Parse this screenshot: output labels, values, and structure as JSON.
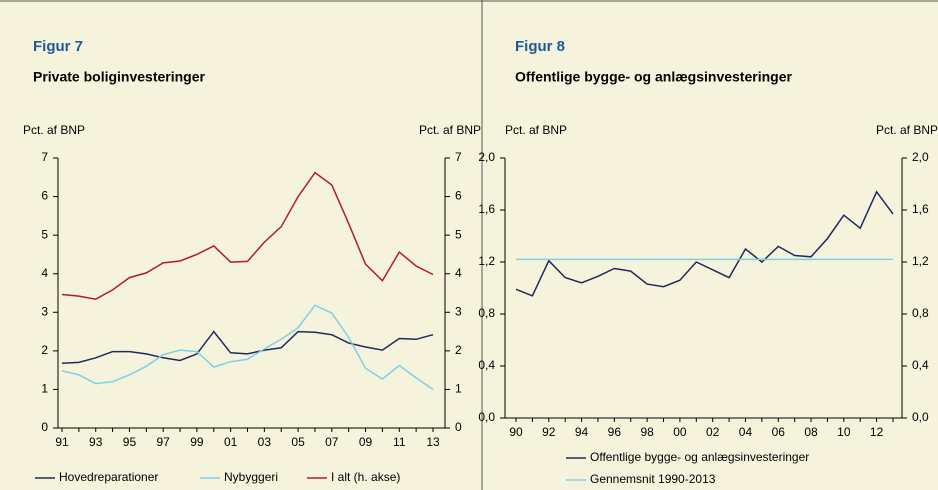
{
  "chart_data": [
    {
      "type": "line",
      "title": "Figur 7",
      "subtitle": "Private boliginvesteringer",
      "ylabel": "Pct. af BNP",
      "y2label": "Pct. af BNP",
      "categories": [
        "91",
        null,
        "93",
        null,
        "95",
        null,
        "97",
        null,
        "99",
        null,
        "01",
        null,
        "03",
        null,
        "05",
        null,
        "07",
        null,
        "09",
        null,
        "11",
        null,
        "13"
      ],
      "series": [
        {
          "name": "Hovedreparationer",
          "color": "#1f2a5c",
          "values": [
            1.68,
            1.7,
            1.82,
            1.98,
            1.98,
            1.92,
            1.82,
            1.75,
            1.92,
            2.5,
            1.95,
            1.92,
            2.02,
            2.08,
            2.5,
            2.48,
            2.42,
            2.2,
            2.1,
            2.02,
            2.32,
            2.3,
            2.42
          ]
        },
        {
          "name": "Nybyggeri",
          "color": "#7fcfe6",
          "values": [
            1.48,
            1.38,
            1.15,
            1.2,
            1.38,
            1.6,
            1.9,
            2.02,
            1.98,
            1.58,
            1.72,
            1.78,
            2.05,
            2.3,
            2.6,
            3.18,
            2.98,
            2.35,
            1.55,
            1.27,
            1.62,
            1.3,
            1.0
          ]
        },
        {
          "name": "I alt (h. akse)",
          "color": "#b01c2e",
          "axis": "y2",
          "values": [
            3.46,
            3.42,
            3.34,
            3.58,
            3.9,
            4.02,
            4.28,
            4.33,
            4.5,
            4.72,
            4.3,
            4.32,
            4.82,
            5.22,
            6.0,
            6.62,
            6.3,
            5.3,
            4.25,
            3.82,
            4.56,
            4.2,
            3.98
          ]
        }
      ],
      "ylim": [
        0,
        7
      ],
      "yticks": [
        0,
        1,
        2,
        3,
        4,
        5,
        6,
        7
      ],
      "y2lim": [
        0,
        7
      ],
      "y2ticks": [
        0,
        1,
        2,
        3,
        4,
        5,
        6,
        7
      ]
    },
    {
      "type": "line",
      "title": "Figur 8",
      "subtitle": "Offentlige bygge- og anlægsinvesteringer",
      "ylabel": "Pct. af BNP",
      "y2label": "Pct. af BNP",
      "categories": [
        "90",
        null,
        "92",
        null,
        "94",
        null,
        "96",
        null,
        "98",
        null,
        "00",
        null,
        "02",
        null,
        "04",
        null,
        "06",
        null,
        "08",
        null,
        "10",
        null,
        "12",
        null
      ],
      "series": [
        {
          "name": "Offentlige bygge- og anlægsinvesteringer",
          "color": "#1f2a5c",
          "values": [
            0.99,
            0.94,
            1.21,
            1.08,
            1.04,
            1.09,
            1.15,
            1.13,
            1.03,
            1.01,
            1.06,
            1.2,
            1.14,
            1.08,
            1.3,
            1.2,
            1.32,
            1.25,
            1.24,
            1.38,
            1.56,
            1.46,
            1.74,
            1.57
          ]
        },
        {
          "name": "Gennemsnit 1990-2013",
          "color": "#7fcfe6",
          "values": [
            1.22,
            1.22,
            1.22,
            1.22,
            1.22,
            1.22,
            1.22,
            1.22,
            1.22,
            1.22,
            1.22,
            1.22,
            1.22,
            1.22,
            1.22,
            1.22,
            1.22,
            1.22,
            1.22,
            1.22,
            1.22,
            1.22,
            1.22,
            1.22
          ]
        }
      ],
      "ylim": [
        0,
        2
      ],
      "yticks": [
        {
          "value": 0,
          "label": "0,0"
        },
        {
          "value": 0.4,
          "label": "0,4"
        },
        {
          "value": 0.8,
          "label": "0,8"
        },
        {
          "value": 1.2,
          "label": "1,2"
        },
        {
          "value": 1.6,
          "label": "1,6"
        },
        {
          "value": 2,
          "label": "2,0"
        }
      ],
      "y2lim": [
        0,
        2
      ],
      "y2ticks": [
        {
          "value": 0,
          "label": "0,0"
        },
        {
          "value": 0.4,
          "label": "0,4"
        },
        {
          "value": 0.8,
          "label": "0,8"
        },
        {
          "value": 1.2,
          "label": "1,2"
        },
        {
          "value": 1.6,
          "label": "1,6"
        },
        {
          "value": 2,
          "label": "2,0"
        }
      ]
    }
  ]
}
